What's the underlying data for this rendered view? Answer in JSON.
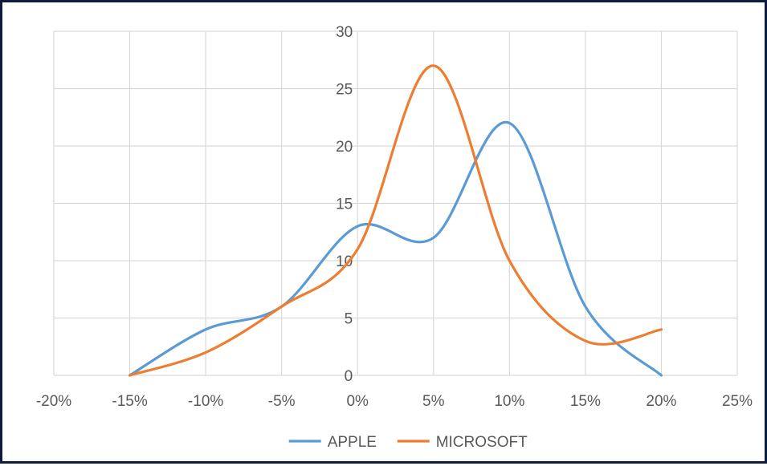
{
  "chart_data": {
    "type": "line",
    "title": "",
    "xlabel": "",
    "ylabel": "",
    "xlim": [
      -0.2,
      0.25
    ],
    "ylim": [
      0,
      30
    ],
    "x_ticks": [
      "-20%",
      "-15%",
      "-10%",
      "-5%",
      "0%",
      "5%",
      "10%",
      "15%",
      "20%",
      "25%"
    ],
    "y_ticks": [
      "0",
      "5",
      "10",
      "15",
      "20",
      "25",
      "30"
    ],
    "grid": true,
    "smooth": true,
    "legend_position": "bottom",
    "series": [
      {
        "name": "APPLE",
        "color": "#5b9bd5",
        "x": [
          -0.15,
          -0.1,
          -0.05,
          0.0,
          0.05,
          0.1,
          0.15,
          0.2
        ],
        "y": [
          0,
          4,
          6,
          13,
          12,
          22,
          6,
          0
        ]
      },
      {
        "name": "MICROSOFT",
        "color": "#ed7d31",
        "x": [
          -0.15,
          -0.1,
          -0.05,
          0.0,
          0.05,
          0.1,
          0.15,
          0.2
        ],
        "y": [
          0,
          2,
          6,
          11,
          27,
          10,
          3,
          4
        ]
      }
    ]
  }
}
